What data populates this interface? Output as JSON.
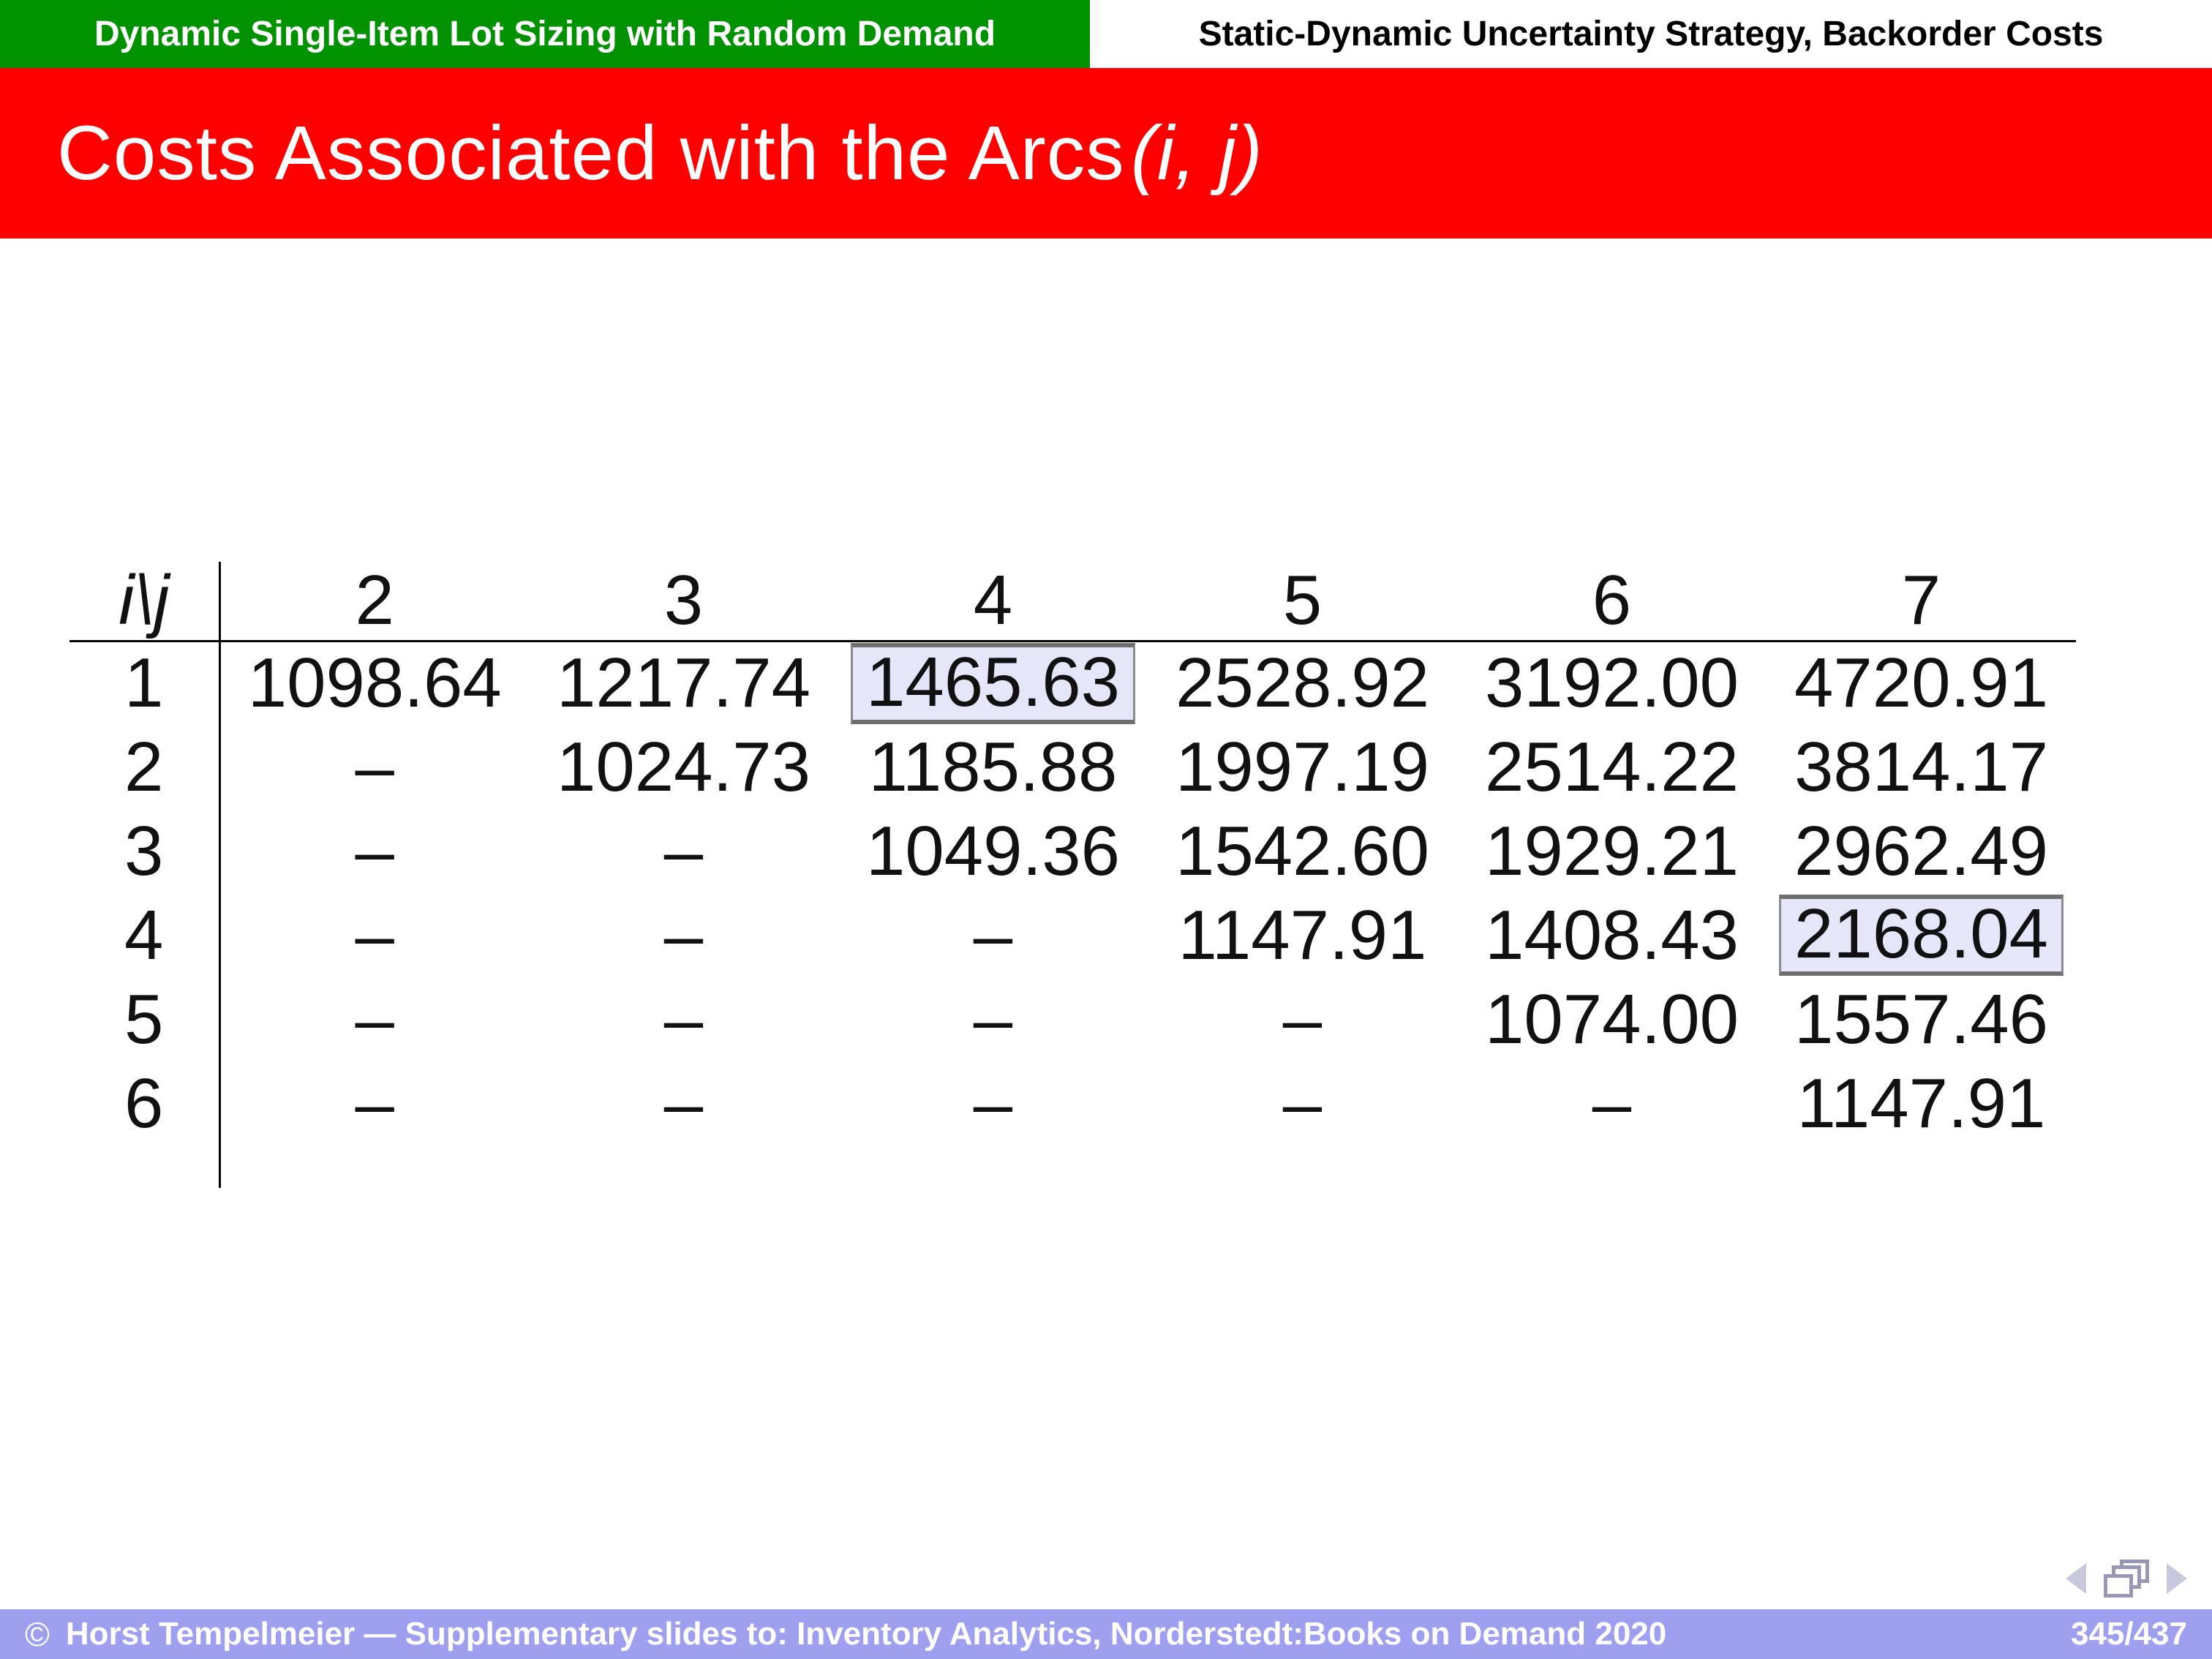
{
  "theme": {
    "green": "#009200",
    "red": "#FE0000",
    "footer_purple": "#9F9FEF",
    "highlight_bg": "#E6E6FA",
    "highlight_border": "#6E6E6E"
  },
  "headbar": {
    "left": "Dynamic Single-Item Lot Sizing with Random Demand",
    "right": "Static-Dynamic Uncertainty Strategy, Backorder Costs"
  },
  "title": {
    "text": "Costs Associated with the Arcs",
    "math": "(i, j)"
  },
  "table": {
    "corner": "i\\j",
    "columns": [
      "2",
      "3",
      "4",
      "5",
      "6",
      "7"
    ],
    "rows": [
      {
        "label": "1",
        "values": [
          "1098.64",
          "1217.74",
          "1465.63",
          "2528.92",
          "3192.00",
          "4720.91"
        ]
      },
      {
        "label": "2",
        "values": [
          "–",
          "1024.73",
          "1185.88",
          "1997.19",
          "2514.22",
          "3814.17"
        ]
      },
      {
        "label": "3",
        "values": [
          "–",
          "–",
          "1049.36",
          "1542.60",
          "1929.21",
          "2962.49"
        ]
      },
      {
        "label": "4",
        "values": [
          "–",
          "–",
          "–",
          "1147.91",
          "1408.43",
          "2168.04"
        ]
      },
      {
        "label": "5",
        "values": [
          "–",
          "–",
          "–",
          "–",
          "1074.00",
          "1557.46"
        ]
      },
      {
        "label": "6",
        "values": [
          "–",
          "–",
          "–",
          "–",
          "–",
          "1147.91"
        ]
      }
    ],
    "highlighted_values": [
      "1465.63",
      "2168.04"
    ]
  },
  "footer": {
    "copyright": "©",
    "text": "Horst Tempelmeier — Supplementary slides to: Inventory Analytics, Norderstedt:Books on Demand 2020",
    "page": "345/437"
  }
}
